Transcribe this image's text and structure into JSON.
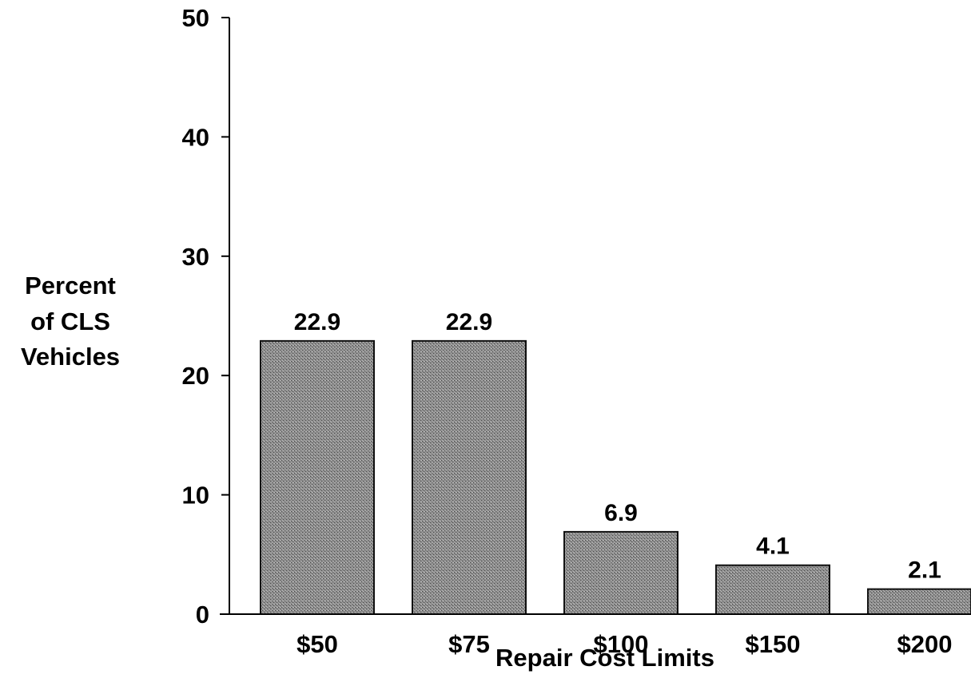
{
  "chart_data": {
    "type": "bar",
    "categories": [
      "$50",
      "$75",
      "$100",
      "$150",
      "$200"
    ],
    "values": [
      22.9,
      22.9,
      6.9,
      4.1,
      2.1
    ],
    "data_labels": [
      "22.9",
      "22.9",
      "6.9",
      "4.1",
      "2.1"
    ],
    "xlabel": "Repair Cost Limits",
    "ylabel_lines": [
      "Percent",
      "of CLS",
      "Vehicles"
    ],
    "ylim": [
      0,
      50
    ],
    "yticks": [
      0,
      10,
      20,
      30,
      40,
      50
    ],
    "grid": false,
    "legend": "none",
    "colors": {
      "bar_fill": "#8a8a8a",
      "bar_stroke": "#111111",
      "axis": "#000000"
    }
  }
}
